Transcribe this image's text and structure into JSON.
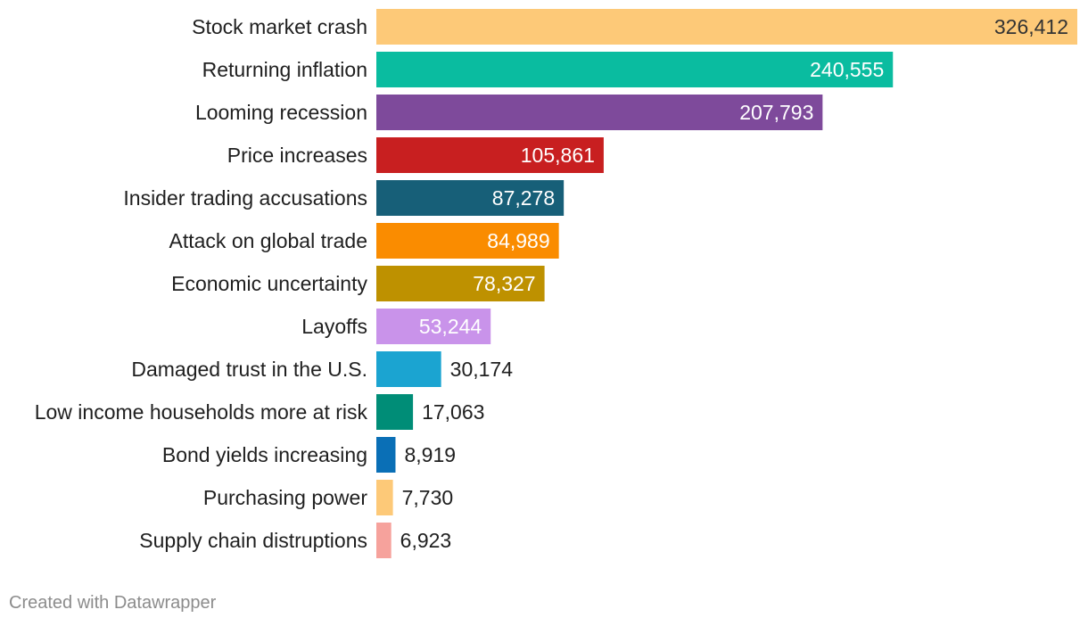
{
  "chart_data": {
    "type": "bar",
    "orientation": "horizontal",
    "categories": [
      "Stock market crash",
      "Returning inflation",
      "Looming recession",
      "Price increases",
      "Insider trading accusations",
      "Attack on global trade",
      "Economic uncertainty",
      "Layoffs",
      "Damaged trust in the U.S.",
      "Low income households more at risk",
      "Bond yields increasing",
      "Purchasing power",
      "Supply chain distruptions"
    ],
    "values": [
      326412,
      240555,
      207793,
      105861,
      87278,
      84989,
      78327,
      53244,
      30174,
      17063,
      8919,
      7730,
      6923
    ],
    "value_labels": [
      "326,412",
      "240,555",
      "207,793",
      "105,861",
      "87,278",
      "84,989",
      "78,327",
      "53,244",
      "30,174",
      "17,063",
      "8,919",
      "7,730",
      "6,923"
    ],
    "colors": [
      "#fdc978",
      "#0abca0",
      "#7e4a9b",
      "#c81f20",
      "#175f78",
      "#fa8c00",
      "#be9100",
      "#c993ea",
      "#1ba4d1",
      "#008d77",
      "#0a6fb6",
      "#fdc978",
      "#f6a29c"
    ],
    "label_colors": [
      "#333333",
      "#ffffff",
      "#ffffff",
      "#ffffff",
      "#ffffff",
      "#ffffff",
      "#ffffff",
      "#ffffff",
      "#1f1f1f",
      "#1f1f1f",
      "#1f1f1f",
      "#1f1f1f",
      "#1f1f1f"
    ],
    "label_inside": [
      true,
      true,
      true,
      true,
      true,
      true,
      true,
      true,
      false,
      false,
      false,
      false,
      false
    ],
    "xlim": [
      0,
      326412
    ],
    "title": "",
    "xlabel": "",
    "ylabel": "",
    "grid": false,
    "legend": "none"
  },
  "footer": {
    "credit": "Created with Datawrapper"
  }
}
